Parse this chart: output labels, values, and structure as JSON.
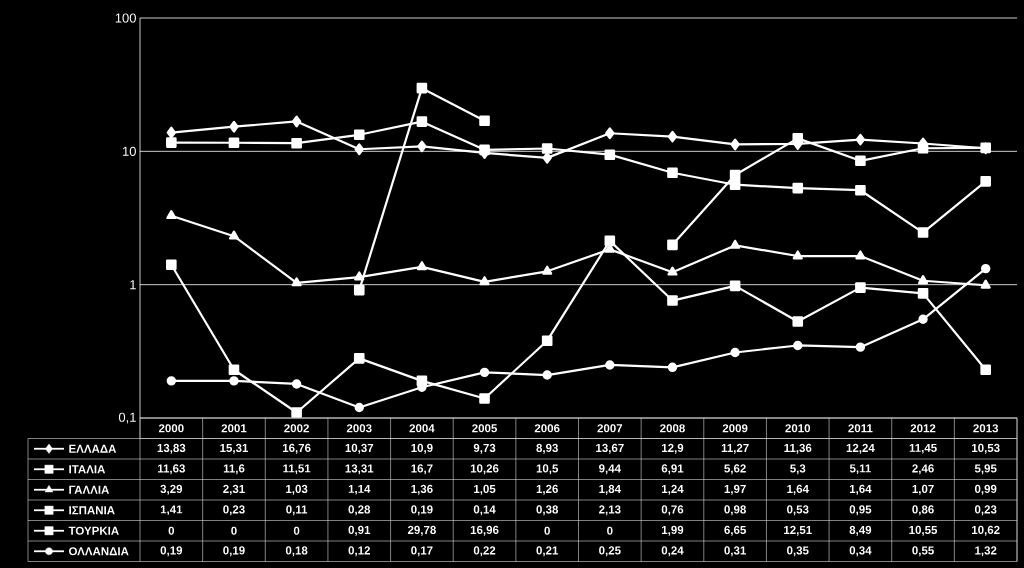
{
  "chart_data": {
    "type": "line",
    "categories": [
      "2000",
      "2001",
      "2002",
      "2003",
      "2004",
      "2005",
      "2006",
      "2007",
      "2008",
      "2009",
      "2010",
      "2011",
      "2012",
      "2013"
    ],
    "log": "y",
    "ylim": [
      0.1,
      100
    ],
    "yticks": [
      {
        "value": 0.1,
        "label": "0,1"
      },
      1,
      10,
      100
    ],
    "grid": "y",
    "legend": "bottom left",
    "series": [
      {
        "name": "ΕΛΛΑΔΑ",
        "color": "#ffffff",
        "marker": "diamond",
        "values": [
          13.83,
          15.31,
          16.76,
          10.37,
          10.9,
          9.73,
          8.93,
          13.67,
          12.9,
          11.27,
          11.36,
          12.24,
          11.45,
          10.53
        ],
        "value_labels": [
          "13,83",
          "15,31",
          "16,76",
          "10,37",
          "10,9",
          "9,73",
          "8,93",
          "13,67",
          "12,9",
          "11,27",
          "11,36",
          "12,24",
          "11,45",
          "10,53"
        ]
      },
      {
        "name": "ΙΤΑΛΙΑ",
        "color": "#ffffff",
        "marker": "square",
        "values": [
          11.63,
          11.6,
          11.51,
          13.31,
          16.7,
          10.26,
          10.5,
          9.44,
          6.91,
          5.62,
          5.3,
          5.11,
          2.46,
          5.95
        ],
        "value_labels": [
          "11,63",
          "11,6",
          "11,51",
          "13,31",
          "16,7",
          "10,26",
          "10,5",
          "9,44",
          "6,91",
          "5,62",
          "5,3",
          "5,11",
          "2,46",
          "5,95"
        ]
      },
      {
        "name": "ΓΑΛΛΙΑ",
        "color": "#ffffff",
        "marker": "triangle",
        "values": [
          3.29,
          2.31,
          1.03,
          1.14,
          1.36,
          1.05,
          1.26,
          1.84,
          1.24,
          1.97,
          1.64,
          1.64,
          1.07,
          0.99
        ],
        "value_labels": [
          "3,29",
          "2,31",
          "1,03",
          "1,14",
          "1,36",
          "1,05",
          "1,26",
          "1,84",
          "1,24",
          "1,97",
          "1,64",
          "1,64",
          "1,07",
          "0,99"
        ]
      },
      {
        "name": "ΙΣΠΑΝΙΑ",
        "color": "#ffffff",
        "marker": "square",
        "values": [
          1.41,
          0.23,
          0.11,
          0.28,
          0.19,
          0.14,
          0.38,
          2.13,
          0.76,
          0.98,
          0.53,
          0.95,
          0.86,
          0.23
        ],
        "value_labels": [
          "1,41",
          "0,23",
          "0,11",
          "0,28",
          "0,19",
          "0,14",
          "0,38",
          "2,13",
          "0,76",
          "0,98",
          "0,53",
          "0,95",
          "0,86",
          "0,23"
        ]
      },
      {
        "name": "ΤΟΥΡΚΙΑ",
        "color": "#ffffff",
        "marker": "square",
        "values": [
          null,
          null,
          null,
          0.91,
          29.78,
          16.96,
          null,
          null,
          1.99,
          6.65,
          12.51,
          8.49,
          10.55,
          10.62
        ],
        "value_labels": [
          "0",
          "0",
          "0",
          "0,91",
          "29,78",
          "16,96",
          "0",
          "0",
          "1,99",
          "6,65",
          "12,51",
          "8,49",
          "10,55",
          "10,62"
        ]
      },
      {
        "name": "ΟΛΛΑΝΔΙΑ",
        "color": "#ffffff",
        "marker": "circle",
        "values": [
          0.19,
          0.19,
          0.18,
          0.12,
          0.17,
          0.22,
          0.21,
          0.25,
          0.24,
          0.31,
          0.35,
          0.34,
          0.55,
          1.32
        ],
        "value_labels": [
          "0,19",
          "0,19",
          "0,18",
          "0,12",
          "0,17",
          "0,22",
          "0,21",
          "0,25",
          "0,24",
          "0,31",
          "0,35",
          "0,34",
          "0,55",
          "1,32"
        ]
      }
    ]
  }
}
